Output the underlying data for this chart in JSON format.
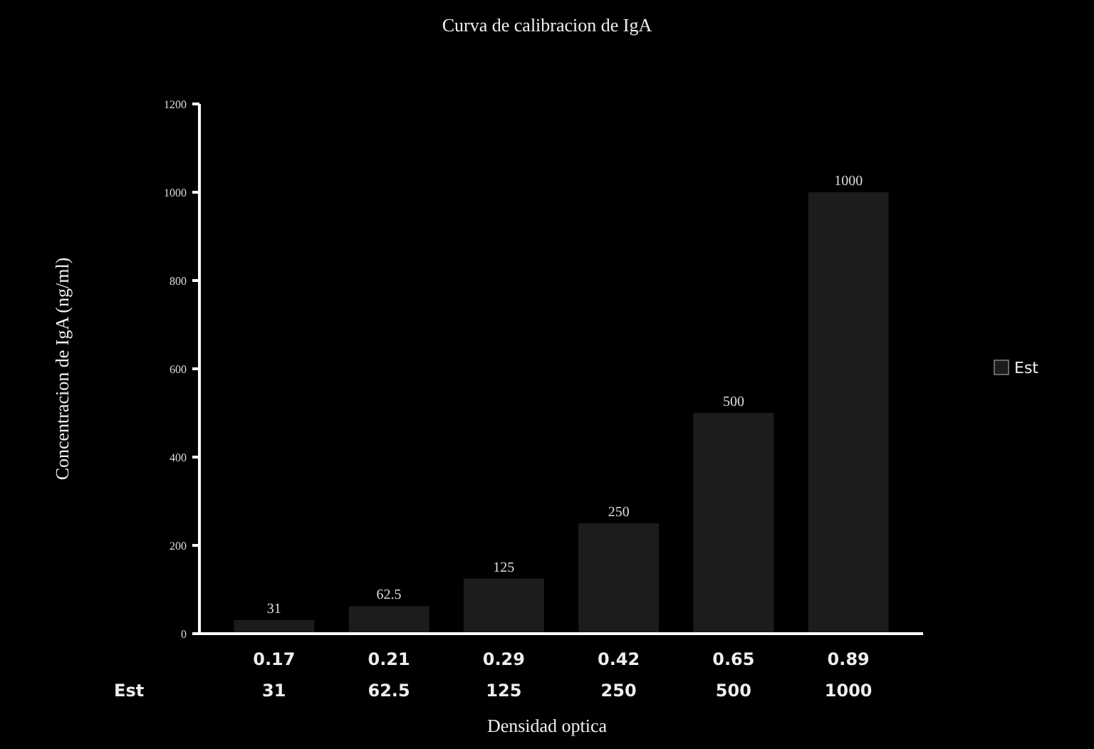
{
  "chart_data": {
    "type": "bar",
    "title": "Curva de calibracion de IgA",
    "xlabel": "Densidad optica",
    "ylabel": "Concentracion de IgA (ng/ml)",
    "categories": [
      "0.17",
      "0.21",
      "0.29",
      "0.42",
      "0.65",
      "0.89"
    ],
    "series": [
      {
        "name": "Est",
        "color": "#1c1c1c",
        "values": [
          31,
          62.5,
          125,
          250,
          500,
          1000
        ]
      }
    ],
    "annotations": [
      {
        "text": "31",
        "x": "0.17",
        "y": 31
      },
      {
        "text": "62.5",
        "x": "0.21",
        "y": 62.5
      },
      {
        "text": "125",
        "x": "0.29",
        "y": 125
      },
      {
        "text": "250",
        "x": "0.42",
        "y": 250
      },
      {
        "text": "500",
        "x": "0.65",
        "y": 500
      },
      {
        "text": "1000",
        "x": "0.89",
        "y": 1000
      }
    ],
    "ylim": [
      0,
      1200
    ],
    "yticks": [
      0,
      200,
      400,
      600,
      800,
      1000,
      1200
    ],
    "data_labels": true,
    "legend": "right",
    "grid": false
  }
}
